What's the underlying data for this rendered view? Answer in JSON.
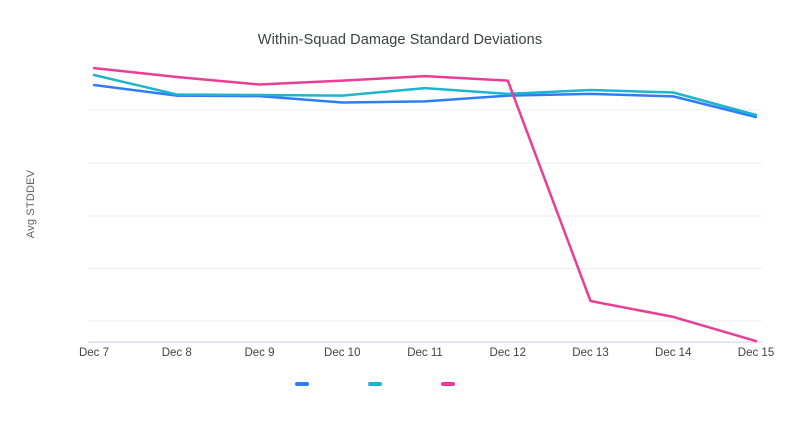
{
  "page": {
    "background": "#ffffff"
  },
  "chart_data": {
    "type": "line",
    "title": "Within-Squad Damage Standard Deviations",
    "xlabel": "",
    "ylabel": "Avg STDDEV",
    "categories": [
      "Dec 7",
      "Dec 8",
      "Dec 9",
      "Dec 10",
      "Dec 11",
      "Dec 12",
      "Dec 13",
      "Dec 14",
      "Dec 15"
    ],
    "series": [
      {
        "name": "",
        "color": "#2e7df6",
        "values": [
          92.8,
          89.0,
          88.8,
          86.5,
          86.9,
          89.0,
          89.6,
          88.7,
          81.3
        ]
      },
      {
        "name": "",
        "color": "#1cb5cd",
        "values": [
          96.4,
          89.4,
          89.2,
          89.0,
          91.7,
          89.6,
          91.0,
          90.1,
          82.0
        ]
      },
      {
        "name": "",
        "color": "#e93d96",
        "values": [
          98.9,
          95.7,
          93.0,
          94.4,
          96.0,
          94.4,
          15.1,
          9.4,
          0.7
        ]
      }
    ],
    "ylim": [
      0,
      100
    ],
    "y_tick_labels_visible": false,
    "y_unit": "relative (no numeric y-axis labels shown; 0 = baseline, 100 = plot top)",
    "gridline_values": [
      7.9,
      26.8,
      45.7,
      64.7,
      83.8
    ],
    "grid": "horizontal",
    "legend_position": "bottom",
    "legend_labels": [
      "",
      "",
      ""
    ]
  },
  "colors": {
    "grid": "#ededed",
    "baseline": "#d9e1f2",
    "title_text": "#3c4043",
    "tick_text": "#424242",
    "axis_title_text": "#5f6368"
  }
}
